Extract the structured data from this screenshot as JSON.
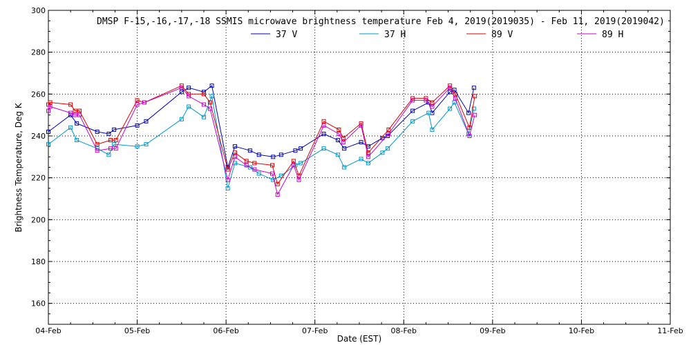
{
  "chart_data": {
    "type": "line",
    "title": "DMSP F-15,-16,-17,-18 SSMIS microwave brightness temperature Feb  4, 2019(2019035) - Feb 11, 2019(2019042)",
    "xlabel": "Date (EST)",
    "ylabel": "Brightness Temperature, Deg K",
    "x_ticks": [
      "04-Feb",
      "05-Feb",
      "06-Feb",
      "07-Feb",
      "08-Feb",
      "09-Feb",
      "10-Feb",
      "11-Feb"
    ],
    "x_range": [
      "04-Feb",
      "11-Feb"
    ],
    "y_ticks": [
      160,
      180,
      200,
      220,
      240,
      260,
      280,
      300
    ],
    "ylim": [
      150,
      300
    ],
    "grid": true,
    "legend_position": "top-center",
    "series": [
      {
        "name": "37 V",
        "color": "#0000b4",
        "x": [
          4.0,
          4.25,
          4.32,
          4.55,
          4.68,
          4.74,
          5.0,
          5.1,
          5.5,
          5.58,
          5.75,
          5.84,
          6.02,
          6.1,
          6.27,
          6.37,
          6.53,
          6.62,
          6.78,
          6.84,
          7.1,
          7.26,
          7.33,
          7.52,
          7.6,
          7.76,
          7.82,
          8.1,
          8.28,
          8.32,
          8.52,
          8.57,
          8.73,
          8.79
        ],
        "y": [
          242,
          250,
          246,
          242,
          241,
          243,
          245,
          247,
          261,
          263,
          261,
          264,
          225,
          235,
          233,
          231,
          230,
          231,
          233,
          234,
          241,
          238,
          234,
          237,
          235,
          239,
          240,
          252,
          256,
          251,
          261,
          262,
          251,
          263
        ]
      },
      {
        "name": "37 H",
        "color": "#0096c8",
        "x": [
          4.0,
          4.25,
          4.32,
          4.55,
          4.68,
          4.74,
          5.0,
          5.1,
          5.5,
          5.58,
          5.75,
          5.84,
          6.02,
          6.1,
          6.27,
          6.37,
          6.53,
          6.62,
          6.78,
          6.84,
          7.1,
          7.26,
          7.33,
          7.52,
          7.6,
          7.76,
          7.82,
          8.1,
          8.28,
          8.32,
          8.52,
          8.57,
          8.73,
          8.79
        ],
        "y": [
          236,
          244,
          238,
          234,
          231,
          236,
          235,
          236,
          248,
          254,
          249,
          259,
          215,
          227,
          225,
          222,
          219,
          221,
          226,
          227,
          234,
          231,
          225,
          229,
          227,
          232,
          234,
          247,
          251,
          243,
          253,
          256,
          241,
          253
        ]
      },
      {
        "name": "89 V",
        "color": "#dc0000",
        "x": [
          4.0,
          4.02,
          4.25,
          4.3,
          4.35,
          4.55,
          4.7,
          4.76,
          5.0,
          5.08,
          5.5,
          5.58,
          5.75,
          5.82,
          6.02,
          6.1,
          6.23,
          6.32,
          6.52,
          6.58,
          6.76,
          6.82,
          7.1,
          7.27,
          7.32,
          7.52,
          7.6,
          7.83,
          8.1,
          8.25,
          8.32,
          8.52,
          8.58,
          8.74,
          8.8
        ],
        "y": [
          255,
          256,
          255,
          252,
          252,
          236,
          238,
          238,
          257,
          256,
          264,
          260,
          260,
          256,
          224,
          232,
          228,
          227,
          226,
          217,
          228,
          221,
          247,
          243,
          239,
          246,
          232,
          243,
          258,
          258,
          256,
          264,
          260,
          244,
          259
        ]
      },
      {
        "name": "89 H",
        "color": "#c800c8",
        "x": [
          4.0,
          4.02,
          4.25,
          4.3,
          4.35,
          4.55,
          4.7,
          4.76,
          5.0,
          5.08,
          5.5,
          5.58,
          5.75,
          5.82,
          6.02,
          6.1,
          6.23,
          6.32,
          6.52,
          6.58,
          6.76,
          6.82,
          7.1,
          7.27,
          7.32,
          7.52,
          7.6,
          7.83,
          8.1,
          8.25,
          8.32,
          8.52,
          8.58,
          8.74,
          8.8
        ],
        "y": [
          252,
          254,
          251,
          250,
          250,
          233,
          234,
          234,
          255,
          256,
          263,
          259,
          255,
          253,
          219,
          230,
          226,
          224,
          222,
          212,
          226,
          219,
          245,
          241,
          237,
          245,
          230,
          241,
          257,
          257,
          254,
          263,
          258,
          240,
          250
        ]
      }
    ]
  }
}
